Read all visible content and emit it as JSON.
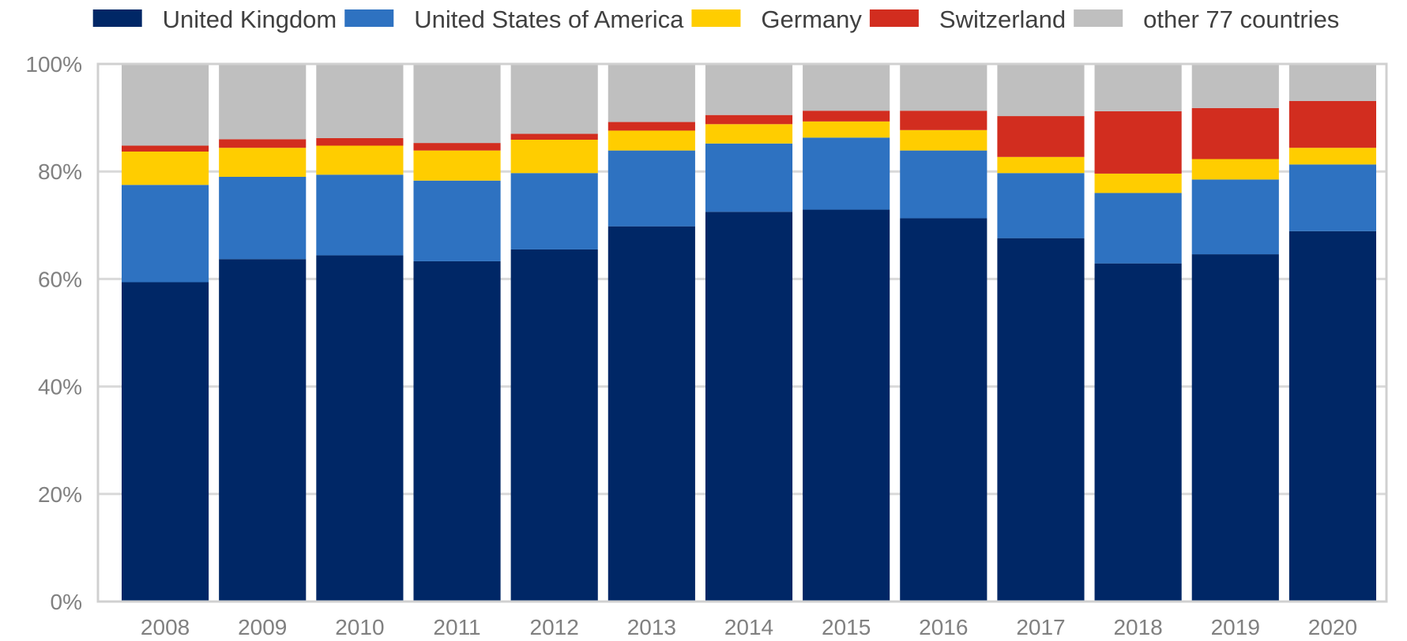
{
  "chart_data": {
    "type": "bar",
    "stacked": true,
    "title": "",
    "xlabel": "",
    "ylabel": "",
    "categories": [
      "2008",
      "2009",
      "2010",
      "2011",
      "2012",
      "2013",
      "2014",
      "2015",
      "2016",
      "2017",
      "2018",
      "2019",
      "2020"
    ],
    "series": [
      {
        "name": "United Kingdom",
        "color": "#002766",
        "values": [
          59.4,
          63.7,
          64.4,
          63.3,
          65.5,
          69.8,
          72.5,
          72.9,
          71.3,
          67.6,
          62.9,
          64.6,
          68.9
        ]
      },
      {
        "name": "United States of America",
        "color": "#2e72c1",
        "values": [
          18.1,
          15.3,
          15.0,
          15.0,
          14.2,
          14.1,
          12.7,
          13.4,
          12.6,
          12.1,
          13.1,
          13.9,
          12.4
        ]
      },
      {
        "name": "Germany",
        "color": "#ffcd00",
        "values": [
          6.2,
          5.4,
          5.4,
          5.6,
          6.2,
          3.7,
          3.6,
          3.0,
          3.8,
          3.0,
          3.6,
          3.8,
          3.1
        ]
      },
      {
        "name": "Switzerland",
        "color": "#d22d1f",
        "values": [
          1.1,
          1.6,
          1.4,
          1.4,
          1.1,
          1.6,
          1.7,
          2.0,
          3.6,
          7.6,
          11.6,
          9.5,
          8.7
        ]
      },
      {
        "name": "other 77 countries",
        "color": "#bfbfbf",
        "values": [
          15.2,
          14.0,
          13.8,
          14.7,
          13.0,
          10.8,
          9.5,
          8.7,
          8.7,
          9.7,
          8.8,
          8.2,
          6.9
        ]
      }
    ],
    "y_ticks": [
      "0%",
      "20%",
      "40%",
      "60%",
      "80%",
      "100%"
    ],
    "ylim": [
      0,
      100
    ],
    "grid": true,
    "legend_position": "top"
  }
}
